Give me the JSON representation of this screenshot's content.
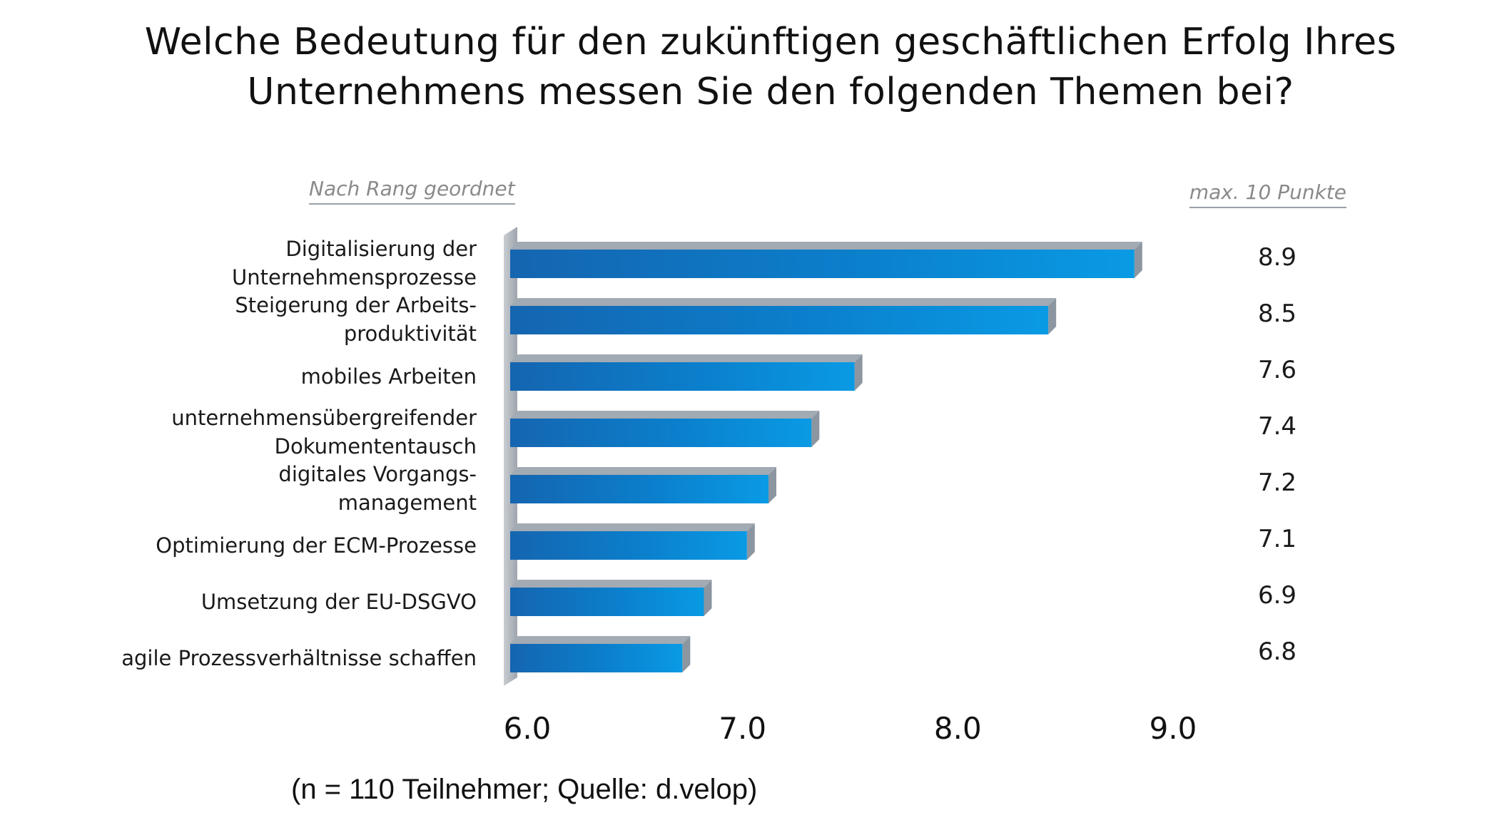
{
  "title": {
    "line1": "Welche Bedeutung für den zukünftigen geschäftlichen Erfolg Ihres",
    "line2": "Unternehmens messen Sie den folgenden Themen bei?"
  },
  "notes": {
    "rank": "Nach Rang geordnet",
    "max": "max. 10 Punkte"
  },
  "footnote": "(n = 110 Teilnehmer; Quelle: d.velop)",
  "colors": {
    "bar_dark": "#1565b0",
    "bar_light": "#0a9ae4",
    "shadow": "#a2aab3",
    "wall": "#b7bcc2"
  },
  "chart_data": {
    "type": "bar",
    "orientation": "horizontal",
    "categories": [
      [
        "Digitalisierung der",
        "Unternehmensprozesse"
      ],
      [
        "Steigerung der Arbeits-",
        "produktivität"
      ],
      [
        "mobiles Arbeiten"
      ],
      [
        "unternehmensübergreifender",
        "Dokumententausch"
      ],
      [
        "digitales Vorgangs-",
        "management"
      ],
      [
        "Optimierung der ECM-Prozesse"
      ],
      [
        "Umsetzung der EU-DSGVO"
      ],
      [
        "agile Prozessverhältnisse schaffen"
      ]
    ],
    "values": [
      8.9,
      8.5,
      7.6,
      7.4,
      7.2,
      7.1,
      6.9,
      6.8
    ],
    "value_labels": [
      "8.9",
      "8.5",
      "7.6",
      "7.4",
      "7.2",
      "7.1",
      "6.9",
      "6.8"
    ],
    "xlim": [
      6.0,
      9.0
    ],
    "xticks": [
      "6.0",
      "7.0",
      "8.0",
      "9.0"
    ],
    "grid": false,
    "legend": "none"
  }
}
